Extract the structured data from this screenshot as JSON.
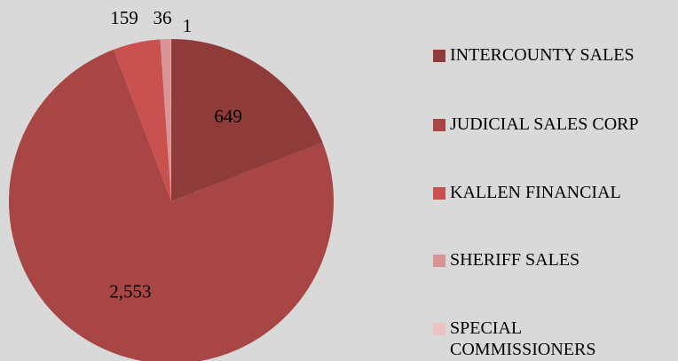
{
  "chart_data": {
    "type": "pie",
    "categories": [
      "INTERCOUNTY SALES",
      "JUDICIAL SALES CORP",
      "KALLEN FINANCIAL",
      "SHERIFF SALES",
      "SPECIAL COMMISSIONERS"
    ],
    "values": [
      649,
      2553,
      159,
      36,
      1
    ],
    "value_labels": [
      "649",
      "2,553",
      "159",
      "36",
      "1"
    ],
    "colors": [
      "#8e3b3a",
      "#a84645",
      "#c9514f",
      "#d99593",
      "#ecc3c2"
    ],
    "legend": "right"
  }
}
